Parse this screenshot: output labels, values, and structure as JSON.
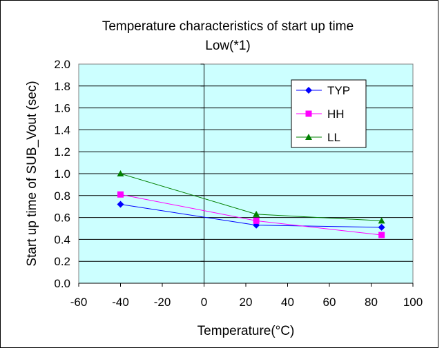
{
  "chart_data": {
    "type": "line",
    "title": "Temperature characteristics of  start up time",
    "subtitle": "Low(*1)",
    "xlabel": "Temperature(°C)",
    "ylabel": "Start up time of  SUB_Vout (sec)",
    "xlim": [
      -60,
      100
    ],
    "ylim": [
      0.0,
      2.0
    ],
    "x_ticks": [
      "-60",
      "-40",
      "-20",
      "0",
      "20",
      "40",
      "60",
      "80",
      "100"
    ],
    "y_ticks": [
      "0.0",
      "0.2",
      "0.4",
      "0.6",
      "0.8",
      "1.0",
      "1.2",
      "1.4",
      "1.6",
      "1.8",
      "2.0"
    ],
    "grid": "horizontal",
    "legend_position": "top-right",
    "plot_background": "#ccffff",
    "series": [
      {
        "name": "TYP",
        "color": "#0000ff",
        "marker": "diamond",
        "points": [
          {
            "x": -40,
            "y": 0.72
          },
          {
            "x": 25,
            "y": 0.53
          },
          {
            "x": 85,
            "y": 0.51
          }
        ]
      },
      {
        "name": "HH",
        "color": "#ff00ff",
        "marker": "square",
        "points": [
          {
            "x": -40,
            "y": 0.81
          },
          {
            "x": 25,
            "y": 0.57
          },
          {
            "x": 85,
            "y": 0.44
          }
        ]
      },
      {
        "name": "LL",
        "color": "#008000",
        "marker": "triangle",
        "points": [
          {
            "x": -40,
            "y": 1.0
          },
          {
            "x": 25,
            "y": 0.63
          },
          {
            "x": 85,
            "y": 0.57
          }
        ]
      }
    ]
  }
}
